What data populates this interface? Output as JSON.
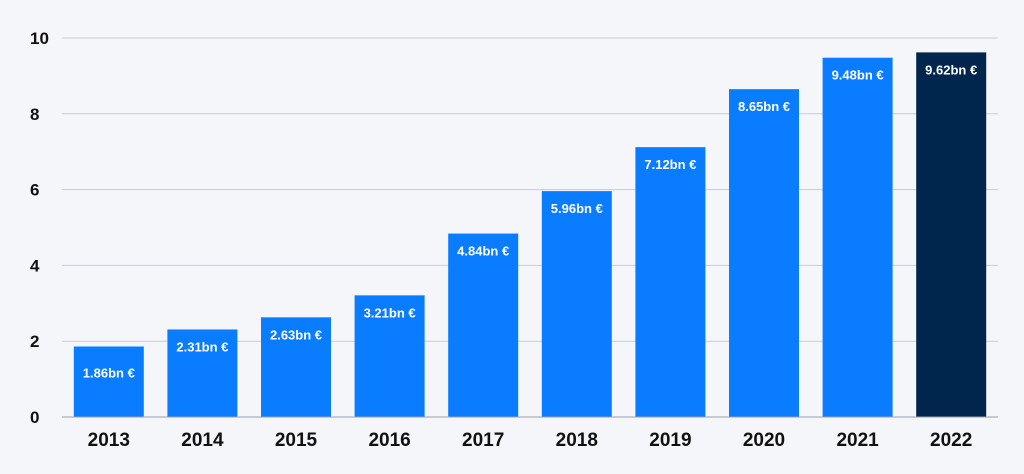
{
  "chart_data": {
    "type": "bar",
    "categories": [
      "2013",
      "2014",
      "2015",
      "2016",
      "2017",
      "2018",
      "2019",
      "2020",
      "2021",
      "2022"
    ],
    "values": [
      1.86,
      2.31,
      2.63,
      3.21,
      4.84,
      5.96,
      7.12,
      8.65,
      9.48,
      9.62
    ],
    "data_labels": [
      "1.86bn €",
      "2.31bn €",
      "2.63bn €",
      "3.21bn €",
      "4.84bn €",
      "5.96bn €",
      "7.12bn €",
      "8.65bn €",
      "9.48bn €",
      "9.62bn €"
    ],
    "yticks": [
      0,
      2,
      4,
      6,
      8,
      10
    ],
    "ylim": [
      0,
      10
    ],
    "grid": true,
    "legend": "none",
    "highlight_index": 9,
    "colors": {
      "bar": "#0a7cff",
      "highlight": "#00264d",
      "background": "#f5f6fa",
      "grid": "#c9ccd3"
    }
  }
}
